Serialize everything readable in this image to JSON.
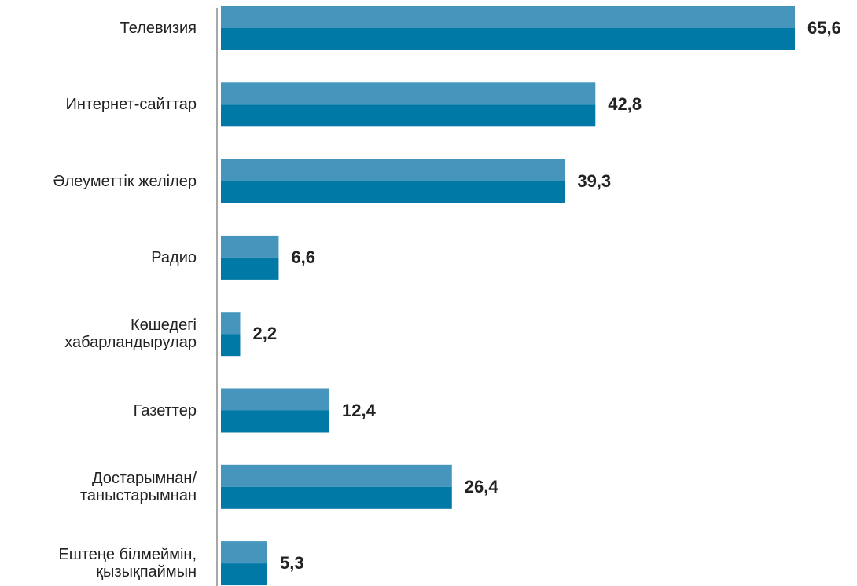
{
  "chart_data": {
    "type": "bar",
    "orientation": "horizontal",
    "categories": [
      "Телевизия",
      "Интернет-сайттар",
      "Әлеуметтік желілер",
      "Радио",
      "Көшедегі\nхабарландырулар",
      "Газеттер",
      "Достарымнан/\nтаныстарымнан",
      "Ештеңе білмеймін,\nқызықпаймын"
    ],
    "values": [
      65.6,
      42.8,
      39.3,
      6.6,
      2.2,
      12.4,
      26.4,
      5.3
    ],
    "value_labels": [
      "65,6",
      "42,8",
      "39,3",
      "6,6",
      "2,2",
      "12,4",
      "26,4",
      "5,3"
    ],
    "color": "#0079a6",
    "highlight_color": "#4595bd"
  }
}
